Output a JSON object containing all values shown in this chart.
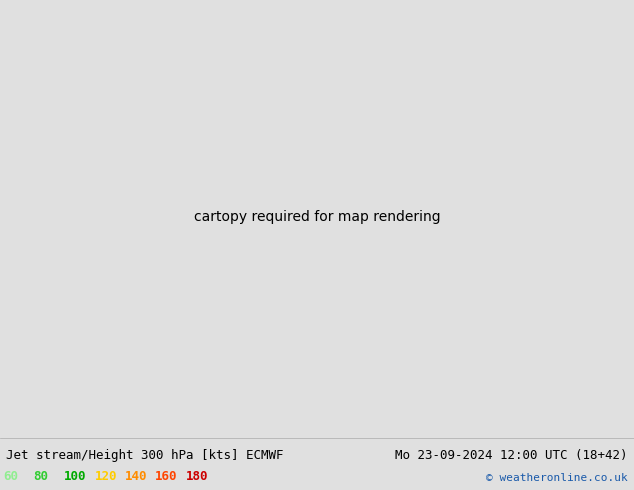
{
  "title_left": "Jet stream/Height 300 hPa [kts] ECMWF",
  "title_right": "Mo 23-09-2024 12:00 UTC (18+42)",
  "copyright": "© weatheronline.co.uk",
  "legend_values": [
    "60",
    "80",
    "100",
    "120",
    "140",
    "160",
    "180"
  ],
  "legend_colors": [
    "#90ee90",
    "#32cd32",
    "#00aa00",
    "#ffcc00",
    "#ff8c00",
    "#ff4500",
    "#cc0000"
  ],
  "wind_colors_list": [
    "#c8f5a0",
    "#55dd55",
    "#00aa00",
    "#ffee00",
    "#ffaa00",
    "#ff5500",
    "#cc0000"
  ],
  "wind_levels": [
    60,
    80,
    100,
    120,
    140,
    160,
    180,
    210
  ],
  "contour_levels": [
    876,
    880,
    884,
    888,
    892,
    896,
    900,
    904,
    908,
    912,
    916,
    920,
    924,
    928,
    932,
    936,
    940,
    944,
    948,
    952,
    956
  ],
  "figsize": [
    6.34,
    4.9
  ],
  "dpi": 100,
  "extent": [
    -172,
    -47,
    13,
    83
  ],
  "font_size_title": 9,
  "font_size_legend": 9,
  "font_size_copyright": 8,
  "ocean_color": "#e0e0e0",
  "land_color": "#d0d0d0",
  "border_color": "#909090",
  "label_fontsize": 6
}
